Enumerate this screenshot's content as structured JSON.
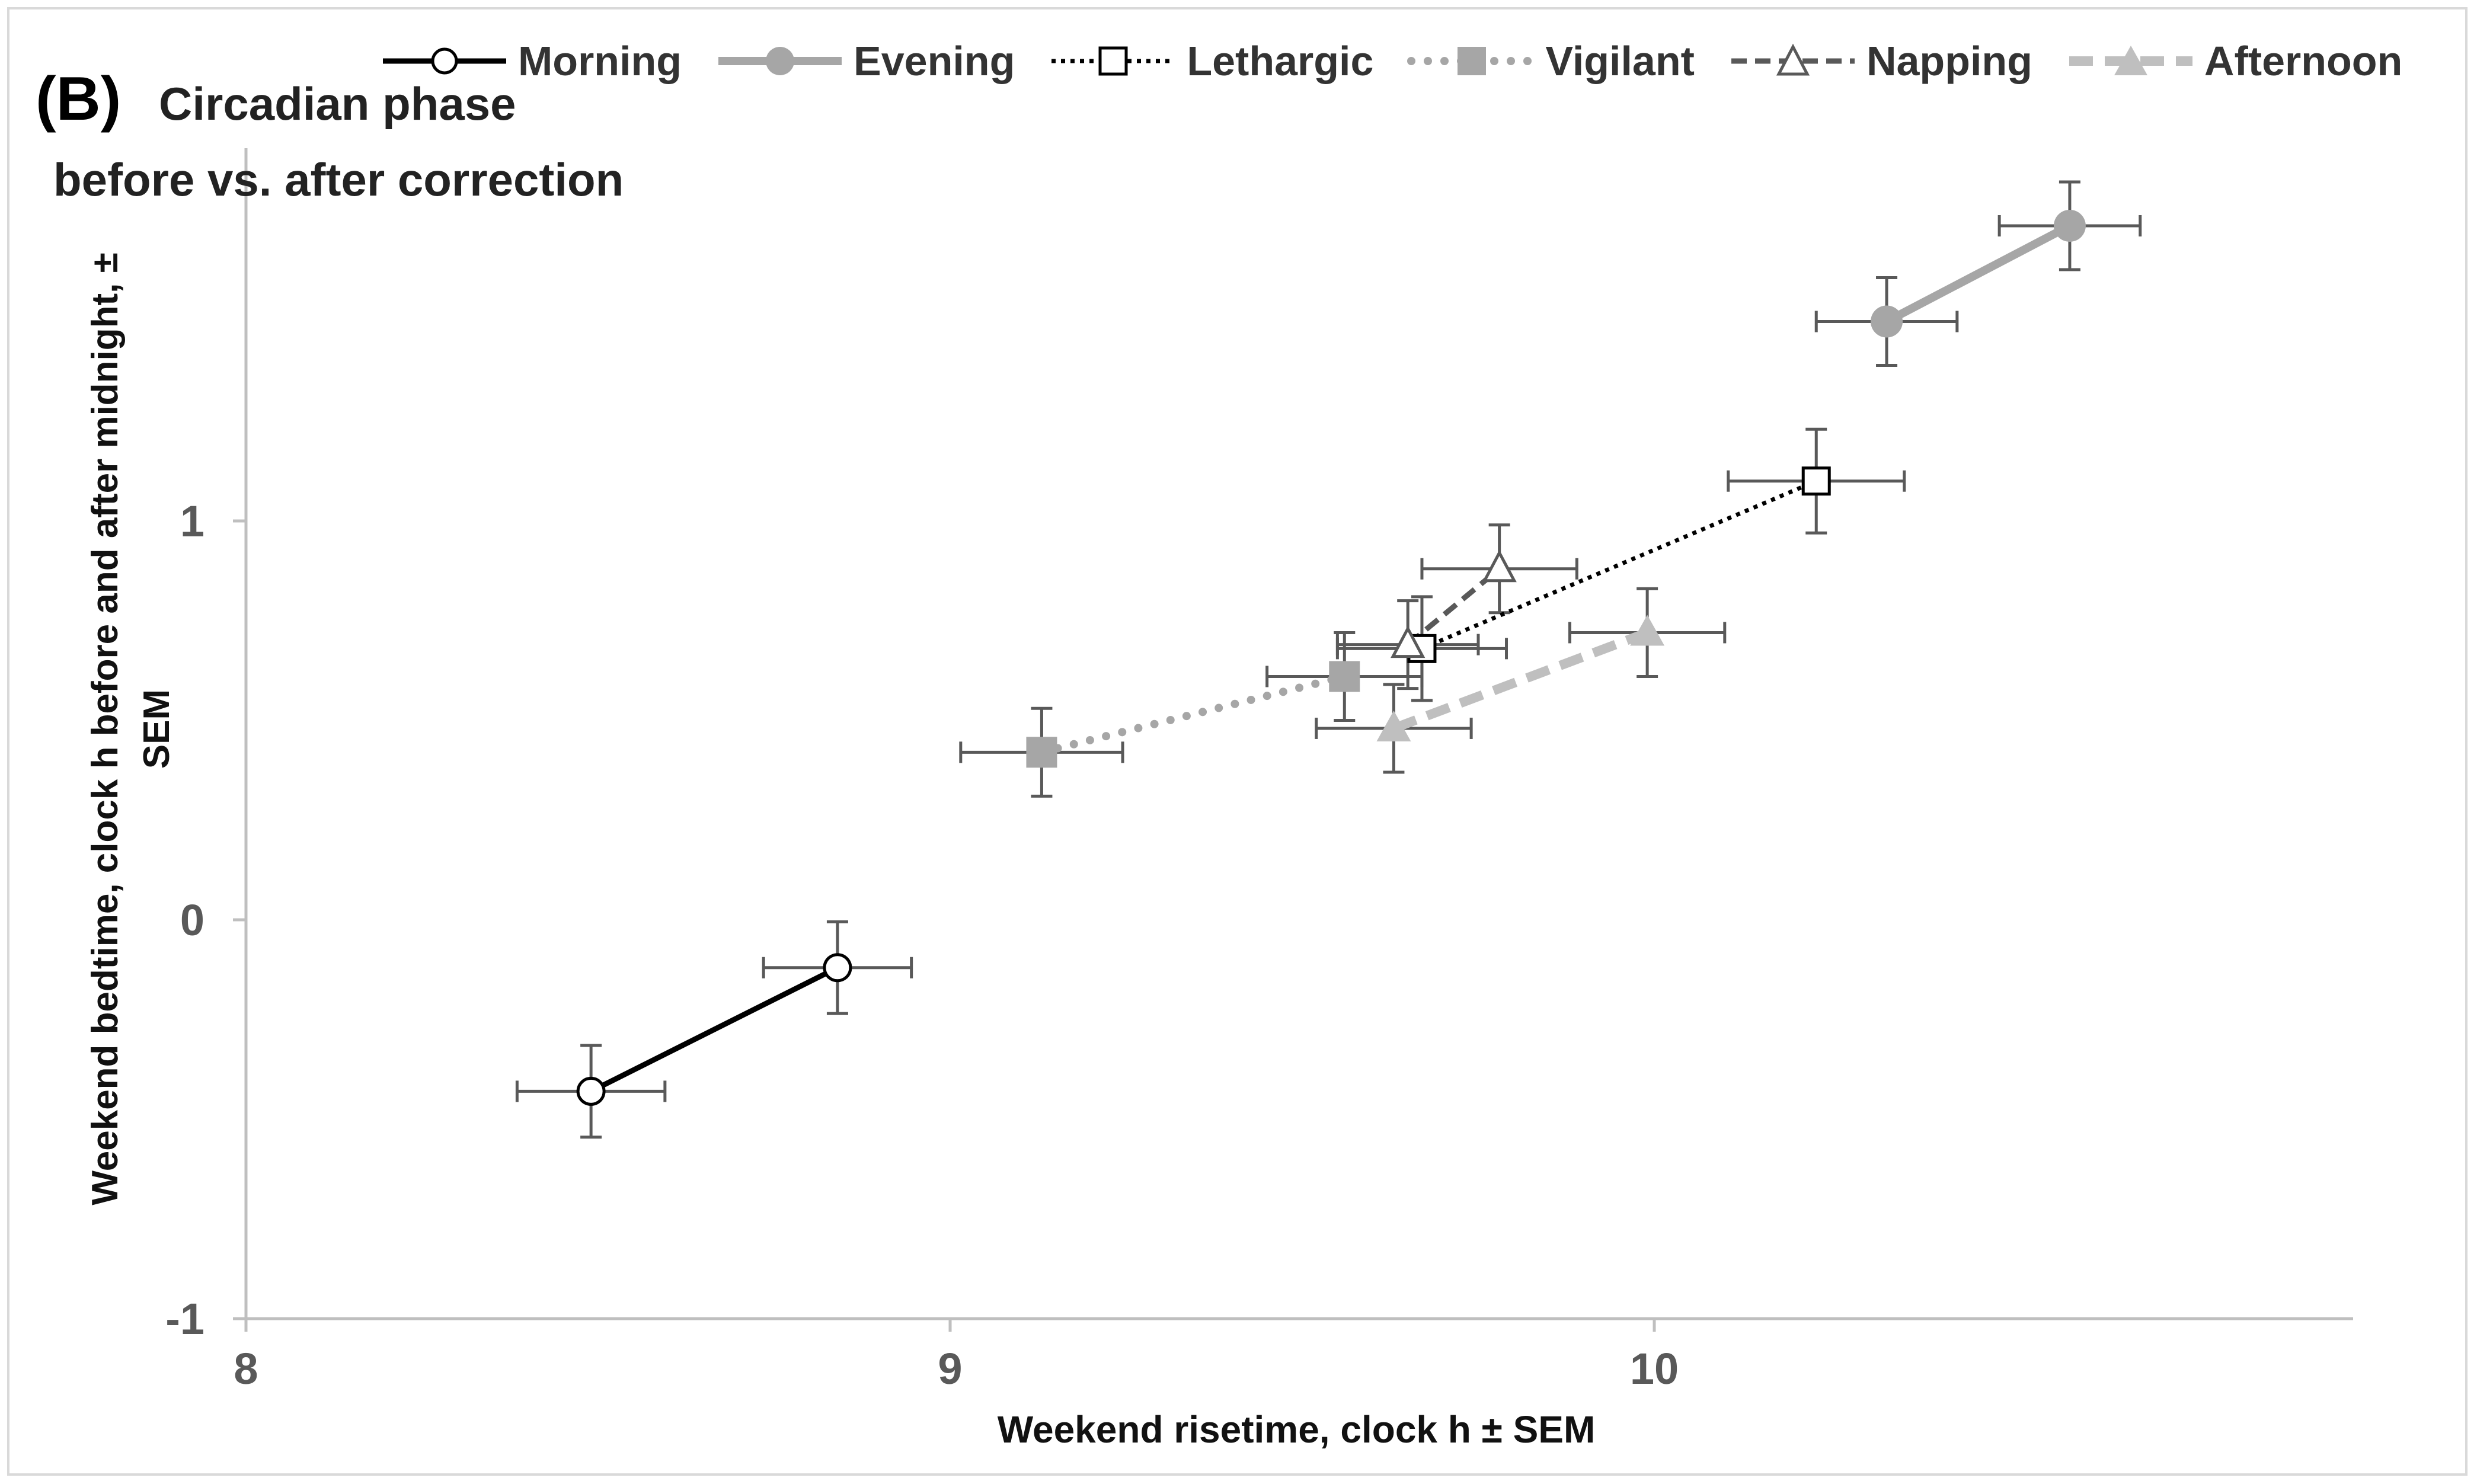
{
  "panel_label": "(B)",
  "title_lines": [
    "Circadian phase",
    "before vs. after correction"
  ],
  "chart_data": {
    "type": "scatter",
    "title": "Circadian phase before vs. after correction",
    "xlabel": "Weekend risetime, clock h ± SEM",
    "ylabel": "Weekend bedtime, clock h before and after midnight, ± SEM",
    "xlim": [
      8,
      11
    ],
    "ylim": [
      -1,
      1.9
    ],
    "x_ticks": [
      8,
      9,
      10
    ],
    "y_ticks": [
      -1,
      0,
      1
    ],
    "x_tick_labels": [
      "8",
      "9",
      "10"
    ],
    "y_tick_labels": [
      "-1",
      "0",
      "1"
    ],
    "legend_position": "top",
    "series": [
      {
        "name": "Morning",
        "line": "solid",
        "marker": "circle-open",
        "color": "#000000",
        "points": [
          {
            "x": 8.49,
            "y": -0.43,
            "xerr": 0.105,
            "yerr": 0.115
          },
          {
            "x": 8.84,
            "y": -0.12,
            "xerr": 0.105,
            "yerr": 0.115
          }
        ]
      },
      {
        "name": "Evening",
        "line": "solid",
        "marker": "circle-filled",
        "color": "#a6a6a6",
        "points": [
          {
            "x": 10.33,
            "y": 1.5,
            "xerr": 0.1,
            "yerr": 0.11
          },
          {
            "x": 10.59,
            "y": 1.74,
            "xerr": 0.1,
            "yerr": 0.11
          }
        ]
      },
      {
        "name": "Lethargic",
        "line": "dotted",
        "marker": "square-open",
        "color": "#000000",
        "points": [
          {
            "x": 9.67,
            "y": 0.68,
            "xerr": 0.12,
            "yerr": 0.13
          },
          {
            "x": 10.23,
            "y": 1.1,
            "xerr": 0.125,
            "yerr": 0.13
          }
        ]
      },
      {
        "name": "Vigilant",
        "line": "round-dotted",
        "marker": "square-filled",
        "color": "#a6a6a6",
        "points": [
          {
            "x": 9.13,
            "y": 0.42,
            "xerr": 0.115,
            "yerr": 0.11
          },
          {
            "x": 9.56,
            "y": 0.61,
            "xerr": 0.11,
            "yerr": 0.11
          }
        ]
      },
      {
        "name": "Napping",
        "line": "dashed",
        "marker": "triangle-open",
        "color": "#595959",
        "points": [
          {
            "x": 9.65,
            "y": 0.69,
            "xerr": 0.1,
            "yerr": 0.11
          },
          {
            "x": 9.78,
            "y": 0.88,
            "xerr": 0.11,
            "yerr": 0.11
          }
        ]
      },
      {
        "name": "Afternoon",
        "line": "dashed-thick",
        "marker": "triangle-filled",
        "color": "#bfbfbf",
        "points": [
          {
            "x": 9.63,
            "y": 0.48,
            "xerr": 0.11,
            "yerr": 0.11
          },
          {
            "x": 9.99,
            "y": 0.72,
            "xerr": 0.11,
            "yerr": 0.11
          }
        ]
      }
    ]
  }
}
